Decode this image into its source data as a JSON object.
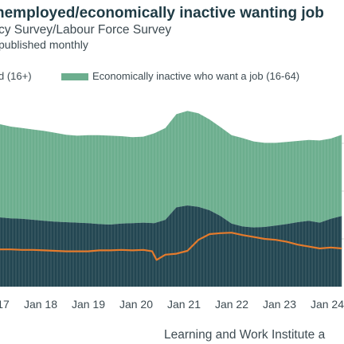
{
  "header": {
    "title": "nemployed/economically inactive wanting job",
    "subtitle": "cy Survey/Labour Force Survey",
    "note": "published monthly"
  },
  "legend": [
    {
      "label": "d (16+)"
    },
    {
      "label": "Economically inactive who want a job (16-64)"
    }
  ],
  "footer": {
    "source": "Learning and Work Institute a"
  },
  "colors": {
    "inactive": "#6cae8e",
    "unemployed": "#234652",
    "line": "#e57b2c",
    "grid": "#d9d9d9",
    "text": "#3e4b52"
  },
  "chart_data": {
    "type": "area",
    "x_ticks": [
      "17",
      "Jan 18",
      "Jan 19",
      "Jan 20",
      "Jan 21",
      "Jan 22",
      "Jan 23",
      "Jan 24"
    ],
    "series": [
      {
        "name": "d (16+)",
        "kind": "area",
        "x": [
          2016.75,
          2017.0,
          2017.25,
          2017.5,
          2017.75,
          2018.0,
          2018.25,
          2018.5,
          2018.75,
          2019.0,
          2019.25,
          2019.5,
          2019.75,
          2020.0,
          2020.25,
          2020.5,
          2020.75,
          2021.0,
          2021.25,
          2021.5,
          2021.75,
          2022.0,
          2022.25,
          2022.5,
          2022.75,
          2023.0,
          2023.25,
          2023.5,
          2023.75,
          2024.0,
          2024.25,
          2024.5
        ],
        "values": [
          1.45,
          1.43,
          1.42,
          1.4,
          1.38,
          1.36,
          1.35,
          1.34,
          1.33,
          1.31,
          1.3,
          1.32,
          1.33,
          1.34,
          1.33,
          1.4,
          1.66,
          1.7,
          1.67,
          1.6,
          1.48,
          1.32,
          1.26,
          1.24,
          1.25,
          1.28,
          1.31,
          1.35,
          1.38,
          1.34,
          1.42,
          1.48
        ]
      },
      {
        "name": "Economically inactive who want a job (16-64)",
        "kind": "area",
        "x": [
          2016.75,
          2017.0,
          2017.25,
          2017.5,
          2017.75,
          2018.0,
          2018.25,
          2018.5,
          2018.75,
          2019.0,
          2019.25,
          2019.5,
          2019.75,
          2020.0,
          2020.25,
          2020.5,
          2020.75,
          2021.0,
          2021.25,
          2021.5,
          2021.75,
          2022.0,
          2022.25,
          2022.5,
          2022.75,
          2023.0,
          2023.25,
          2023.5,
          2023.75,
          2024.0,
          2024.25,
          2024.5
        ],
        "values": [
          1.95,
          1.92,
          1.9,
          1.89,
          1.88,
          1.86,
          1.83,
          1.82,
          1.84,
          1.86,
          1.86,
          1.83,
          1.8,
          1.8,
          1.88,
          1.92,
          1.95,
          1.98,
          1.96,
          1.9,
          1.86,
          1.85,
          1.85,
          1.8,
          1.76,
          1.73,
          1.72,
          1.7,
          1.69,
          1.72,
          1.68,
          1.7
        ]
      },
      {
        "kind": "line",
        "x": [
          2016.75,
          2017.0,
          2017.25,
          2017.5,
          2017.75,
          2018.0,
          2018.25,
          2018.5,
          2018.75,
          2019.0,
          2019.25,
          2019.5,
          2019.75,
          2020.0,
          2020.2,
          2020.3,
          2020.5,
          2020.75,
          2021.0,
          2021.25,
          2021.5,
          2021.75,
          2022.0,
          2022.25,
          2022.5,
          2022.75,
          2023.0,
          2023.25,
          2023.5,
          2023.75,
          2024.0,
          2024.25,
          2024.5
        ],
        "values": [
          0.78,
          0.78,
          0.77,
          0.77,
          0.76,
          0.75,
          0.74,
          0.74,
          0.74,
          0.76,
          0.76,
          0.77,
          0.76,
          0.77,
          0.74,
          0.56,
          0.67,
          0.69,
          0.75,
          0.98,
          1.1,
          1.12,
          1.13,
          1.08,
          1.04,
          1.0,
          0.98,
          0.94,
          0.88,
          0.84,
          0.8,
          0.82,
          0.8
        ]
      }
    ],
    "xlim": [
      2016.75,
      2024.55
    ],
    "ylim": [
      0,
      4.0
    ],
    "grid": true,
    "legend_position": "top"
  }
}
